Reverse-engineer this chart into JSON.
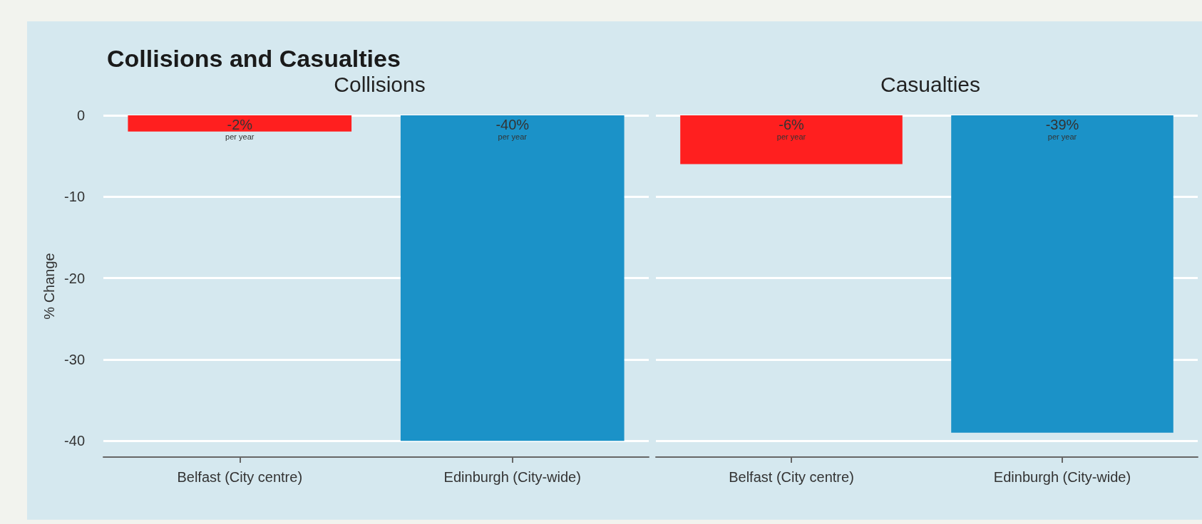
{
  "chart_data": [
    {
      "type": "bar",
      "title": "Collisions and Casualties",
      "subtitle": "Collisions",
      "ylabel": "% Change",
      "categories": [
        "Belfast (City centre)",
        "Edinburgh (City-wide)"
      ],
      "values": [
        -2,
        -40
      ],
      "colors": [
        "#ff1f1f",
        "#1b92c8"
      ],
      "value_labels": [
        "-2%",
        "-40%"
      ],
      "annotations": [
        "per year",
        "per year"
      ],
      "ylim": [
        -42,
        0
      ],
      "yticks": [
        -40,
        -30,
        -20,
        -10,
        0
      ],
      "grid": "y"
    },
    {
      "type": "bar",
      "subtitle": "Casualties",
      "categories": [
        "Belfast (City centre)",
        "Edinburgh (City-wide)"
      ],
      "values": [
        -6,
        -39
      ],
      "colors": [
        "#ff1f1f",
        "#1b92c8"
      ],
      "value_labels": [
        "-6%",
        "-39%"
      ],
      "annotations": [
        "per year",
        "per year"
      ],
      "ylim": [
        -42,
        0
      ],
      "yticks": [
        -40,
        -30,
        -20,
        -10,
        0
      ],
      "grid": "y",
      "tick_labels": "x"
    }
  ]
}
